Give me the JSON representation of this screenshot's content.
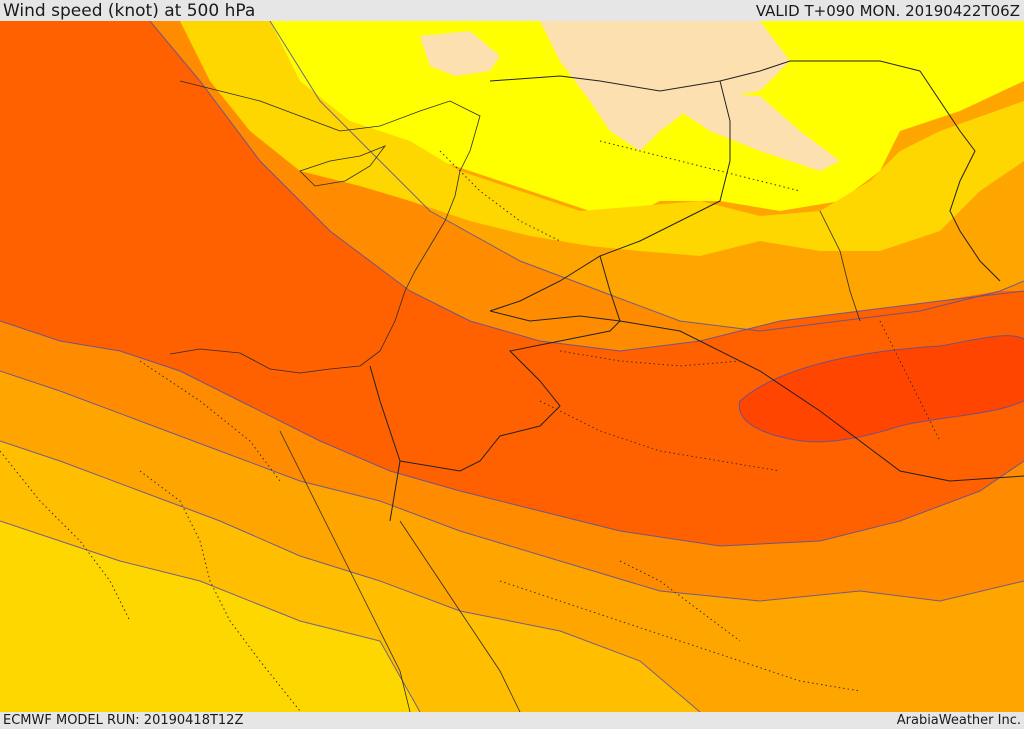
{
  "header": {
    "title": "Wind speed (knot) at 500 hPa",
    "valid": "VALID T+090 MON. 20190422T06Z"
  },
  "footer": {
    "model_run": "ECMWF MODEL RUN: 20190418T12Z",
    "credit": "ArabiaWeather Inc."
  },
  "map": {
    "field": "wind-speed-shading",
    "colors": {
      "pale": "#fde0b0",
      "yellow": "#ffff00",
      "gold": "#ffd700",
      "amber": "#ffbf00",
      "orange_light": "#ffa500",
      "orange": "#ff8c00",
      "orange_dark": "#ff6000",
      "red_orange": "#ff4500"
    }
  }
}
